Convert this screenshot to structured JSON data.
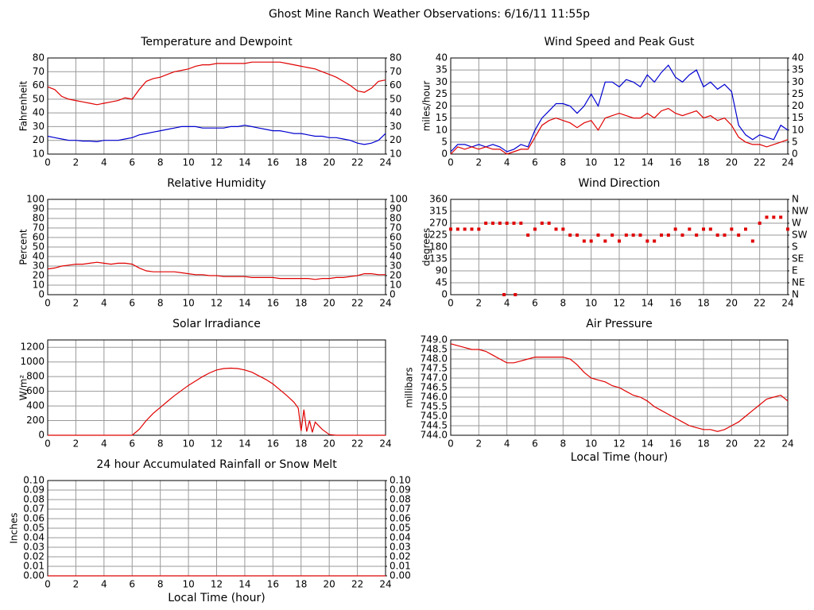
{
  "title": "Ghost Mine Ranch Weather Observations: 6/16/11 11:55p",
  "chart_data": [
    {
      "type": "line",
      "title": "Temperature and Dewpoint",
      "ylabel": "Fahrenheit",
      "xlim": [
        0,
        24
      ],
      "xticks": [
        0,
        2,
        4,
        6,
        8,
        10,
        12,
        14,
        16,
        18,
        20,
        22,
        24
      ],
      "ylim": [
        10,
        80
      ],
      "yticks": [
        10,
        20,
        30,
        40,
        50,
        60,
        70,
        80
      ],
      "y2lim": [
        10,
        80
      ],
      "y2ticks": [
        10,
        20,
        30,
        40,
        50,
        60,
        70,
        80
      ],
      "grid": true,
      "x": [
        0,
        0.5,
        1,
        1.5,
        2,
        2.5,
        3,
        3.5,
        4,
        4.5,
        5,
        5.5,
        6,
        6.5,
        7,
        7.5,
        8,
        8.5,
        9,
        9.5,
        10,
        10.5,
        11,
        11.5,
        12,
        12.5,
        13,
        13.5,
        14,
        14.5,
        15,
        15.5,
        16,
        16.5,
        17,
        17.5,
        18,
        18.5,
        19,
        19.5,
        20,
        20.5,
        21,
        21.5,
        22,
        22.5,
        23,
        23.5,
        24
      ],
      "series": [
        {
          "color": "#e00000",
          "values": [
            59,
            57,
            52,
            50,
            49,
            48,
            47,
            46,
            47,
            48,
            49,
            51,
            50,
            57,
            63,
            65,
            66,
            68,
            70,
            71,
            72,
            74,
            75,
            75,
            76,
            76,
            76,
            76,
            76,
            77,
            77,
            77,
            77,
            77,
            76,
            75,
            74,
            73,
            72,
            70,
            68,
            66,
            63,
            60,
            56,
            55,
            58,
            63,
            64
          ]
        },
        {
          "color": "#0000d0",
          "values": [
            23,
            22,
            21,
            20,
            20,
            19.5,
            19.5,
            19,
            20,
            20,
            20,
            21,
            22,
            24,
            25,
            26,
            27,
            28,
            29,
            30,
            30,
            30,
            29,
            29,
            29,
            29,
            30,
            30,
            31,
            30,
            29,
            28,
            27,
            27,
            26,
            25,
            25,
            24,
            23,
            23,
            22,
            22,
            21,
            20,
            18,
            17,
            18,
            20,
            25
          ]
        }
      ]
    },
    {
      "type": "line",
      "title": "Wind Speed and Peak Gust",
      "ylabel": "miles/hour",
      "xlim": [
        0,
        24
      ],
      "xticks": [
        0,
        2,
        4,
        6,
        8,
        10,
        12,
        14,
        16,
        18,
        20,
        22,
        24
      ],
      "ylim": [
        0,
        40
      ],
      "yticks": [
        0,
        5,
        10,
        15,
        20,
        25,
        30,
        35,
        40
      ],
      "y2lim": [
        0,
        40
      ],
      "y2ticks": [
        0,
        5,
        10,
        15,
        20,
        25,
        30,
        35,
        40
      ],
      "grid": true,
      "x": [
        0,
        0.5,
        1,
        1.5,
        2,
        2.5,
        3,
        3.5,
        4,
        4.5,
        5,
        5.5,
        6,
        6.5,
        7,
        7.5,
        8,
        8.5,
        9,
        9.5,
        10,
        10.5,
        11,
        11.5,
        12,
        12.5,
        13,
        13.5,
        14,
        14.5,
        15,
        15.5,
        16,
        16.5,
        17,
        17.5,
        18,
        18.5,
        19,
        19.5,
        20,
        20.5,
        21,
        21.5,
        22,
        22.5,
        23,
        23.5,
        24
      ],
      "series": [
        {
          "color": "#0000d0",
          "values": [
            1,
            4,
            4,
            3,
            4,
            3,
            4,
            3,
            1,
            2,
            4,
            3,
            10,
            15,
            18,
            21,
            21,
            20,
            17,
            20,
            25,
            20,
            30,
            30,
            28,
            31,
            30,
            28,
            33,
            30,
            34,
            37,
            32,
            30,
            33,
            35,
            28,
            30,
            27,
            29,
            26,
            12,
            8,
            6,
            8,
            7,
            6,
            12,
            10
          ]
        },
        {
          "color": "#e00000",
          "values": [
            0,
            3,
            2,
            3,
            2,
            3,
            2,
            2,
            0,
            1,
            2,
            2,
            7,
            12,
            14,
            15,
            14,
            13,
            11,
            13,
            14,
            10,
            15,
            16,
            17,
            16,
            15,
            15,
            17,
            15,
            18,
            19,
            17,
            16,
            17,
            18,
            15,
            16,
            14,
            15,
            12,
            7,
            5,
            4,
            4,
            3,
            4,
            5,
            6
          ]
        }
      ]
    },
    {
      "type": "line",
      "title": "Relative Humidity",
      "ylabel": "Percent",
      "xlim": [
        0,
        24
      ],
      "xticks": [
        0,
        2,
        4,
        6,
        8,
        10,
        12,
        14,
        16,
        18,
        20,
        22,
        24
      ],
      "ylim": [
        0,
        100
      ],
      "yticks": [
        0,
        10,
        20,
        30,
        40,
        50,
        60,
        70,
        80,
        90,
        100
      ],
      "y2lim": [
        0,
        100
      ],
      "y2ticks": [
        0,
        10,
        20,
        30,
        40,
        50,
        60,
        70,
        80,
        90,
        100
      ],
      "grid": true,
      "x": [
        0,
        0.5,
        1,
        1.5,
        2,
        2.5,
        3,
        3.5,
        4,
        4.5,
        5,
        5.5,
        6,
        6.5,
        7,
        7.5,
        8,
        8.5,
        9,
        9.5,
        10,
        10.5,
        11,
        11.5,
        12,
        12.5,
        13,
        13.5,
        14,
        14.5,
        15,
        15.5,
        16,
        16.5,
        17,
        17.5,
        18,
        18.5,
        19,
        19.5,
        20,
        20.5,
        21,
        21.5,
        22,
        22.5,
        23,
        23.5,
        24
      ],
      "series": [
        {
          "color": "#e00000",
          "values": [
            27,
            28,
            30,
            31,
            32,
            32,
            33,
            34,
            33,
            32,
            33,
            33,
            32,
            28,
            25,
            24,
            24,
            24,
            24,
            23,
            22,
            21,
            21,
            20,
            20,
            19,
            19,
            19,
            19,
            18,
            18,
            18,
            18,
            17,
            17,
            17,
            17,
            17,
            16,
            17,
            17,
            18,
            18,
            19,
            20,
            22,
            22,
            21,
            21
          ]
        }
      ]
    },
    {
      "type": "scatter",
      "title": "Wind Direction",
      "ylabel": "degrees",
      "xlim": [
        0,
        24
      ],
      "xticks": [
        0,
        2,
        4,
        6,
        8,
        10,
        12,
        14,
        16,
        18,
        20,
        22,
        24
      ],
      "ylim": [
        0,
        360
      ],
      "yticks": [
        0,
        45,
        90,
        135,
        180,
        225,
        270,
        315,
        360
      ],
      "y2lim": [
        0,
        360
      ],
      "y2ticks": [
        {
          "value": 0,
          "label": "N"
        },
        {
          "value": 45,
          "label": "NE"
        },
        {
          "value": 90,
          "label": "E"
        },
        {
          "value": 135,
          "label": "SE"
        },
        {
          "value": 180,
          "label": "S"
        },
        {
          "value": 225,
          "label": "SW"
        },
        {
          "value": 270,
          "label": "W"
        },
        {
          "value": 315,
          "label": "NW"
        },
        {
          "value": 360,
          "label": "N"
        }
      ],
      "grid": true,
      "x": [
        0,
        0.5,
        1,
        1.5,
        2,
        2.5,
        3,
        3.5,
        3.8,
        4,
        4.5,
        4.6,
        5,
        5.5,
        6,
        6.5,
        7,
        7.5,
        8,
        8.5,
        9,
        9.5,
        10,
        10.5,
        11,
        11.5,
        12,
        12.5,
        13,
        13.5,
        14,
        14.5,
        15,
        15.5,
        16,
        16.5,
        17,
        17.5,
        18,
        18.5,
        19,
        19.5,
        20,
        20.5,
        21,
        21.5,
        22,
        22.5,
        23,
        23.5,
        24
      ],
      "series": [
        {
          "color": "#e00000",
          "values": [
            247.5,
            247.5,
            247.5,
            247.5,
            247.5,
            270,
            270,
            270,
            0,
            270,
            270,
            0,
            270,
            225,
            247.5,
            270,
            270,
            247.5,
            247.5,
            225,
            225,
            202.5,
            202.5,
            225,
            202.5,
            225,
            202.5,
            225,
            225,
            225,
            202.5,
            202.5,
            225,
            225,
            247.5,
            225,
            247.5,
            225,
            247.5,
            247.5,
            225,
            225,
            247.5,
            225,
            247.5,
            202.5,
            270,
            292.5,
            292.5,
            292.5,
            247.5
          ]
        }
      ]
    },
    {
      "type": "line",
      "title": "Solar Irradiance",
      "ylabel": "W/m²",
      "xlim": [
        0,
        24
      ],
      "xticks": [
        0,
        2,
        4,
        6,
        8,
        10,
        12,
        14,
        16,
        18,
        20,
        22,
        24
      ],
      "ylim": [
        0,
        1300
      ],
      "yticks": [
        0,
        200,
        400,
        600,
        800,
        1000,
        1200
      ],
      "grid": true,
      "x": [
        0,
        2,
        4,
        6,
        6.5,
        7,
        7.5,
        8,
        8.5,
        9,
        9.5,
        10,
        10.5,
        11,
        11.5,
        12,
        12.5,
        13,
        13.5,
        14,
        14.5,
        15,
        15.5,
        16,
        16.5,
        17,
        17.5,
        17.8,
        18,
        18.2,
        18.4,
        18.6,
        18.8,
        19,
        19.5,
        20,
        20.5,
        22,
        24
      ],
      "series": [
        {
          "color": "#e00000",
          "values": [
            0,
            0,
            0,
            0,
            80,
            200,
            300,
            380,
            460,
            540,
            610,
            680,
            740,
            800,
            850,
            890,
            910,
            915,
            910,
            890,
            860,
            810,
            760,
            700,
            620,
            540,
            450,
            370,
            60,
            350,
            50,
            200,
            40,
            180,
            80,
            10,
            0,
            0,
            0
          ]
        }
      ]
    },
    {
      "type": "line",
      "title": "Air Pressure",
      "ylabel": "millibars",
      "xlabel": "Local Time (hour)",
      "xlim": [
        0,
        24
      ],
      "xticks": [
        0,
        2,
        4,
        6,
        8,
        10,
        12,
        14,
        16,
        18,
        20,
        22,
        24
      ],
      "ylim": [
        744,
        749
      ],
      "yticks": [
        {
          "value": 744,
          "label": "744.0"
        },
        744.5,
        {
          "value": 745,
          "label": "745.0"
        },
        745.5,
        {
          "value": 746,
          "label": "746.0"
        },
        746.5,
        {
          "value": 747,
          "label": "747.0"
        },
        747.5,
        {
          "value": 748,
          "label": "748.0"
        },
        748.5,
        {
          "value": 749,
          "label": "749.0"
        }
      ],
      "grid": true,
      "x": [
        0,
        0.5,
        1,
        1.5,
        2,
        2.5,
        3,
        3.5,
        4,
        4.5,
        5,
        5.5,
        6,
        6.5,
        7,
        7.5,
        8,
        8.5,
        9,
        9.5,
        10,
        10.5,
        11,
        11.5,
        12,
        12.5,
        13,
        13.5,
        14,
        14.5,
        15,
        15.5,
        16,
        16.5,
        17,
        17.5,
        18,
        18.5,
        19,
        19.5,
        20,
        20.5,
        21,
        21.5,
        22,
        22.5,
        23,
        23.5,
        24
      ],
      "series": [
        {
          "color": "#e00000",
          "values": [
            748.8,
            748.7,
            748.6,
            748.5,
            748.5,
            748.4,
            748.2,
            748.0,
            747.8,
            747.8,
            747.9,
            748.0,
            748.1,
            748.1,
            748.1,
            748.1,
            748.1,
            748.0,
            747.7,
            747.3,
            747.0,
            746.9,
            746.8,
            746.6,
            746.5,
            746.3,
            746.1,
            746.0,
            745.8,
            745.5,
            745.3,
            745.1,
            744.9,
            744.7,
            744.5,
            744.4,
            744.3,
            744.3,
            744.2,
            744.3,
            744.5,
            744.7,
            745.0,
            745.3,
            745.6,
            745.9,
            746.0,
            746.1,
            745.8
          ]
        }
      ]
    },
    {
      "type": "line",
      "title": "24 hour Accumulated Rainfall or Snow Melt",
      "ylabel": "Inches",
      "xlabel": "Local Time (hour)",
      "xlim": [
        0,
        24
      ],
      "xticks": [
        0,
        2,
        4,
        6,
        8,
        10,
        12,
        14,
        16,
        18,
        20,
        22,
        24
      ],
      "ylim": [
        0,
        0.1
      ],
      "yticks": [
        {
          "value": 0,
          "label": "0.00"
        },
        0.01,
        0.02,
        0.03,
        0.04,
        0.05,
        0.06,
        0.07,
        0.08,
        0.09,
        {
          "value": 0.1,
          "label": "0.10"
        }
      ],
      "y2lim": [
        0,
        0.1
      ],
      "y2ticks": [
        {
          "value": 0,
          "label": "0.00"
        },
        0.01,
        0.02,
        0.03,
        0.04,
        0.05,
        0.06,
        0.07,
        0.08,
        0.09,
        {
          "value": 0.1,
          "label": "0.10"
        }
      ],
      "grid": true,
      "x": [
        0,
        24
      ],
      "series": [
        {
          "color": "#e00000",
          "values": [
            0,
            0
          ]
        }
      ]
    }
  ]
}
